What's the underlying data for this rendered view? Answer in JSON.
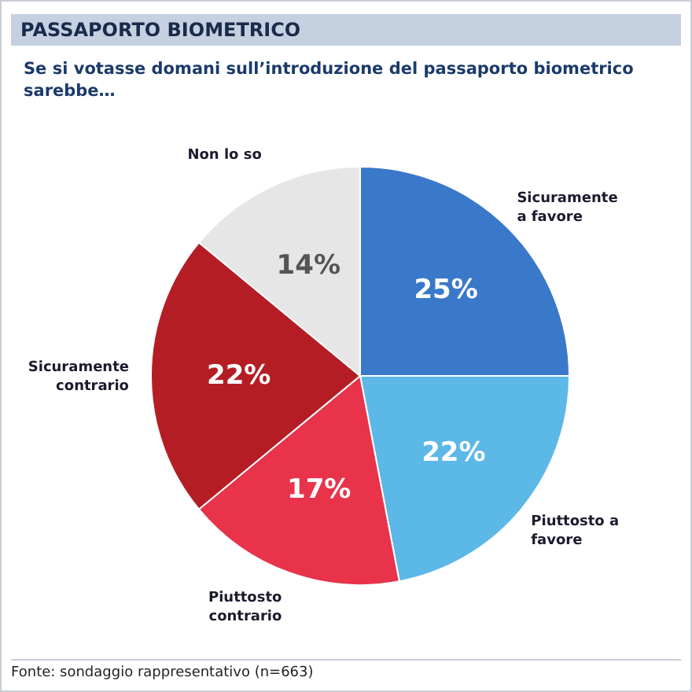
{
  "chart_data": {
    "type": "pie",
    "title": "PASSAPORTO BIOMETRICO",
    "subtitle": "Se si votasse domani sull’introduzione del passaporto biometrico sarebbe…",
    "categories": [
      "Sicuramente a favore",
      "Piuttosto a favore",
      "Piuttosto contrario",
      "Sicuramente contrario",
      "Non lo so"
    ],
    "values": [
      25,
      22,
      17,
      22,
      14
    ],
    "value_labels": [
      "25%",
      "22%",
      "17%",
      "22%",
      "14%"
    ],
    "colors": [
      "#3a78c9",
      "#5cb8e6",
      "#e8334a",
      "#b51d25",
      "#e6e6e6"
    ],
    "annotations": [
      "Fonte: sondaggio rappresentativo (n=663)"
    ]
  }
}
